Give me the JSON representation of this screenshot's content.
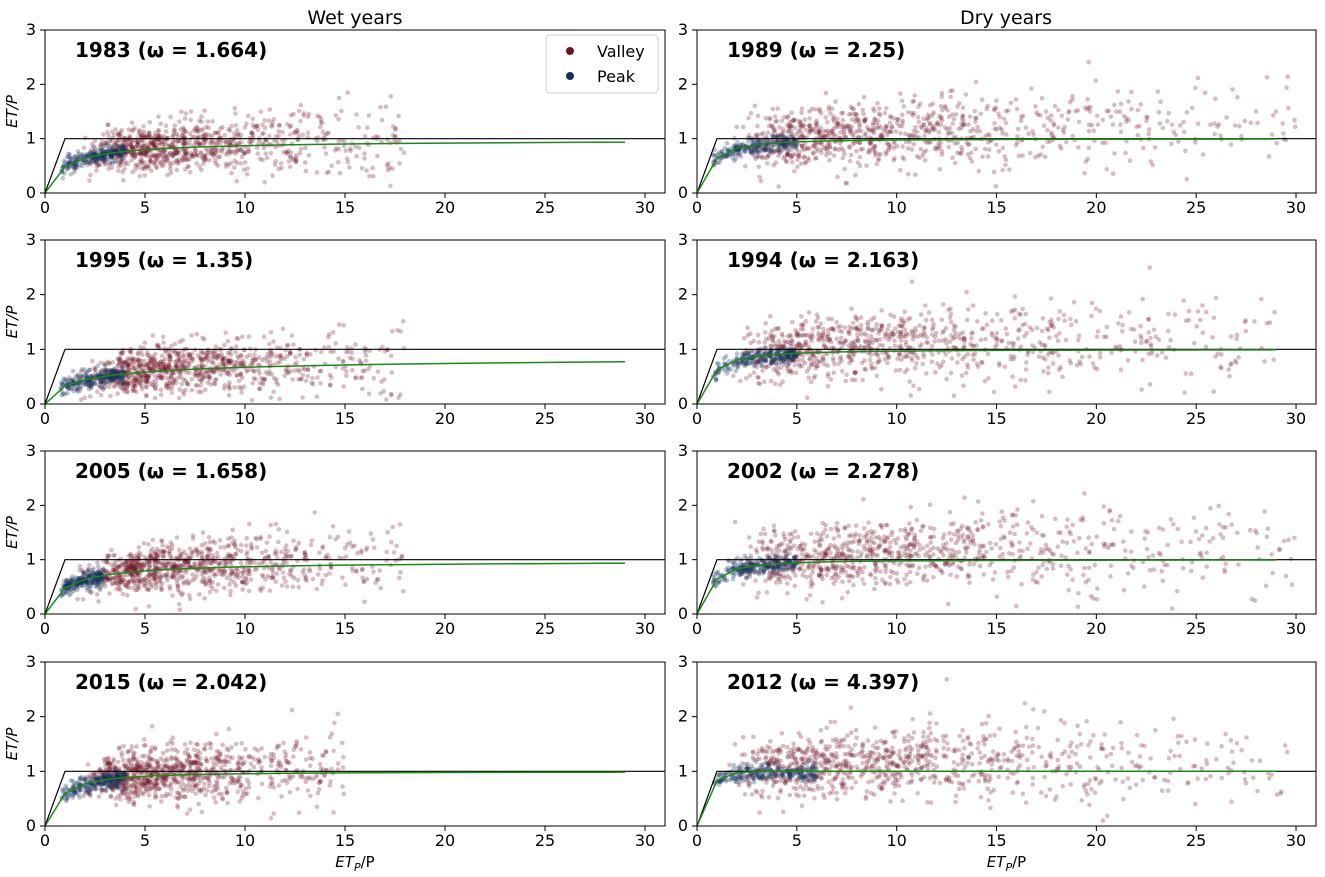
{
  "figure": {
    "column_titles": [
      "Wet years",
      "Dry years"
    ],
    "ylabel": "ET/P",
    "xlabel_main": "ET",
    "xlabel_sub": "P",
    "xlabel_tail": "/P",
    "legend": [
      {
        "label": "Valley",
        "color": "#6e1223"
      },
      {
        "label": "Peak",
        "color": "#13335c"
      }
    ]
  },
  "chart_data": [
    {
      "type": "scatter",
      "column": "Wet years",
      "year": "1983",
      "omega": "1.664",
      "title": "1983  (ω = 1.664)",
      "xlim": [
        0,
        31
      ],
      "ylim": [
        0,
        3
      ],
      "xticks": [
        "0",
        "5",
        "10",
        "15",
        "20",
        "25",
        "30"
      ],
      "yticks": [
        "0",
        "1",
        "2",
        "3"
      ],
      "valley_xmax": 18,
      "peak_xmax": 4,
      "points": [
        {
          "x": 1,
          "y": 0.4
        },
        {
          "x": 3,
          "y": 0.75
        },
        {
          "x": 5,
          "y": 0.85
        },
        {
          "x": 8,
          "y": 0.9
        },
        {
          "x": 12,
          "y": 1.0
        },
        {
          "x": 15,
          "y": 1.1
        }
      ],
      "budyko_curve_xmax": 29,
      "energy_limit": 1,
      "water_limit": 1,
      "series": [
        "Valley",
        "Peak"
      ]
    },
    {
      "type": "scatter",
      "column": "Dry years",
      "year": "1989",
      "omega": "2.25",
      "title": "1989  (ω = 2.25)",
      "xlim": [
        0,
        31
      ],
      "ylim": [
        0,
        3
      ],
      "xticks": [
        "0",
        "5",
        "10",
        "15",
        "20",
        "25",
        "30"
      ],
      "yticks": [
        "0",
        "1",
        "2",
        "3"
      ],
      "valley_xmax": 30,
      "peak_xmax": 5,
      "points": [
        {
          "x": 2,
          "y": 0.55
        },
        {
          "x": 5,
          "y": 0.9
        },
        {
          "x": 10,
          "y": 1.1
        },
        {
          "x": 15,
          "y": 1.2
        },
        {
          "x": 20,
          "y": 1.4
        },
        {
          "x": 28,
          "y": 2.1
        }
      ],
      "budyko_curve_xmax": 29,
      "energy_limit": 1,
      "water_limit": 1,
      "series": [
        "Valley",
        "Peak"
      ]
    },
    {
      "type": "scatter",
      "column": "Wet years",
      "year": "1995",
      "omega": "1.35",
      "title": "1995  (ω = 1.35)",
      "xlim": [
        0,
        31
      ],
      "ylim": [
        0,
        3
      ],
      "xticks": [
        "0",
        "5",
        "10",
        "15",
        "20",
        "25",
        "30"
      ],
      "yticks": [
        "0",
        "1",
        "2",
        "3"
      ],
      "valley_xmax": 18,
      "peak_xmax": 4,
      "points": [
        {
          "x": 1,
          "y": 0.3
        },
        {
          "x": 3,
          "y": 0.5
        },
        {
          "x": 5,
          "y": 0.55
        },
        {
          "x": 8,
          "y": 0.65
        },
        {
          "x": 12,
          "y": 0.8
        },
        {
          "x": 15,
          "y": 0.9
        }
      ],
      "budyko_curve_xmax": 29,
      "energy_limit": 1,
      "water_limit": 1,
      "series": [
        "Valley",
        "Peak"
      ]
    },
    {
      "type": "scatter",
      "column": "Dry years",
      "year": "1994",
      "omega": "2.163",
      "title": "1994  (ω = 2.163)",
      "xlim": [
        0,
        31
      ],
      "ylim": [
        0,
        3
      ],
      "xticks": [
        "0",
        "5",
        "10",
        "15",
        "20",
        "25",
        "30"
      ],
      "yticks": [
        "0",
        "1",
        "2",
        "3"
      ],
      "valley_xmax": 29,
      "peak_xmax": 5,
      "points": [
        {
          "x": 2,
          "y": 0.55
        },
        {
          "x": 5,
          "y": 0.85
        },
        {
          "x": 10,
          "y": 1.0
        },
        {
          "x": 15,
          "y": 1.15
        },
        {
          "x": 20,
          "y": 1.3
        },
        {
          "x": 27,
          "y": 1.8
        }
      ],
      "budyko_curve_xmax": 29,
      "energy_limit": 1,
      "water_limit": 1,
      "series": [
        "Valley",
        "Peak"
      ]
    },
    {
      "type": "scatter",
      "column": "Wet years",
      "year": "2005",
      "omega": "1.658",
      "title": "2005  (ω = 1.658)",
      "xlim": [
        0,
        31
      ],
      "ylim": [
        0,
        3
      ],
      "xticks": [
        "0",
        "5",
        "10",
        "15",
        "20",
        "25",
        "30"
      ],
      "yticks": [
        "0",
        "1",
        "2",
        "3"
      ],
      "valley_xmax": 18,
      "peak_xmax": 3,
      "points": [
        {
          "x": 1,
          "y": 0.45
        },
        {
          "x": 3,
          "y": 0.7
        },
        {
          "x": 5,
          "y": 0.75
        },
        {
          "x": 8,
          "y": 0.85
        },
        {
          "x": 12,
          "y": 1.0
        },
        {
          "x": 17,
          "y": 1.2
        }
      ],
      "budyko_curve_xmax": 29,
      "energy_limit": 1,
      "water_limit": 1,
      "series": [
        "Valley",
        "Peak"
      ]
    },
    {
      "type": "scatter",
      "column": "Dry years",
      "year": "2002",
      "omega": "2.278",
      "title": "2002  (ω = 2.278)",
      "xlim": [
        0,
        31
      ],
      "ylim": [
        0,
        3
      ],
      "xticks": [
        "0",
        "5",
        "10",
        "15",
        "20",
        "25",
        "30"
      ],
      "yticks": [
        "0",
        "1",
        "2",
        "3"
      ],
      "valley_xmax": 30,
      "peak_xmax": 5,
      "points": [
        {
          "x": 2,
          "y": 0.6
        },
        {
          "x": 5,
          "y": 0.9
        },
        {
          "x": 10,
          "y": 1.0
        },
        {
          "x": 15,
          "y": 1.1
        },
        {
          "x": 20,
          "y": 1.2
        },
        {
          "x": 28,
          "y": 1.6
        }
      ],
      "budyko_curve_xmax": 29,
      "energy_limit": 1,
      "water_limit": 1,
      "series": [
        "Valley",
        "Peak"
      ]
    },
    {
      "type": "scatter",
      "column": "Wet years",
      "year": "2015",
      "omega": "2.042",
      "title": "2015  (ω = 2.042)",
      "xlim": [
        0,
        31
      ],
      "ylim": [
        0,
        3
      ],
      "xticks": [
        "0",
        "5",
        "10",
        "15",
        "20",
        "25",
        "30"
      ],
      "yticks": [
        "0",
        "1",
        "2",
        "3"
      ],
      "valley_xmax": 15,
      "peak_xmax": 4,
      "points": [
        {
          "x": 1,
          "y": 0.5
        },
        {
          "x": 3,
          "y": 0.8
        },
        {
          "x": 5,
          "y": 0.9
        },
        {
          "x": 8,
          "y": 1.0
        },
        {
          "x": 11,
          "y": 1.1
        },
        {
          "x": 14,
          "y": 1.2
        }
      ],
      "budyko_curve_xmax": 29,
      "energy_limit": 1,
      "water_limit": 1,
      "series": [
        "Valley",
        "Peak"
      ]
    },
    {
      "type": "scatter",
      "column": "Dry years",
      "year": "2012",
      "omega": "4.397",
      "title": "2012  (ω = 4.397)",
      "xlim": [
        0,
        31
      ],
      "ylim": [
        0,
        3
      ],
      "xticks": [
        "0",
        "5",
        "10",
        "15",
        "20",
        "25",
        "30"
      ],
      "yticks": [
        "0",
        "1",
        "2",
        "3"
      ],
      "valley_xmax": 30,
      "peak_xmax": 6,
      "points": [
        {
          "x": 2,
          "y": 0.85
        },
        {
          "x": 5,
          "y": 1.1
        },
        {
          "x": 10,
          "y": 1.1
        },
        {
          "x": 15,
          "y": 1.2
        },
        {
          "x": 20,
          "y": 1.4
        },
        {
          "x": 28,
          "y": 1.7
        }
      ],
      "budyko_curve_xmax": 29,
      "energy_limit": 1,
      "water_limit": 1,
      "series": [
        "Valley",
        "Peak"
      ]
    }
  ]
}
